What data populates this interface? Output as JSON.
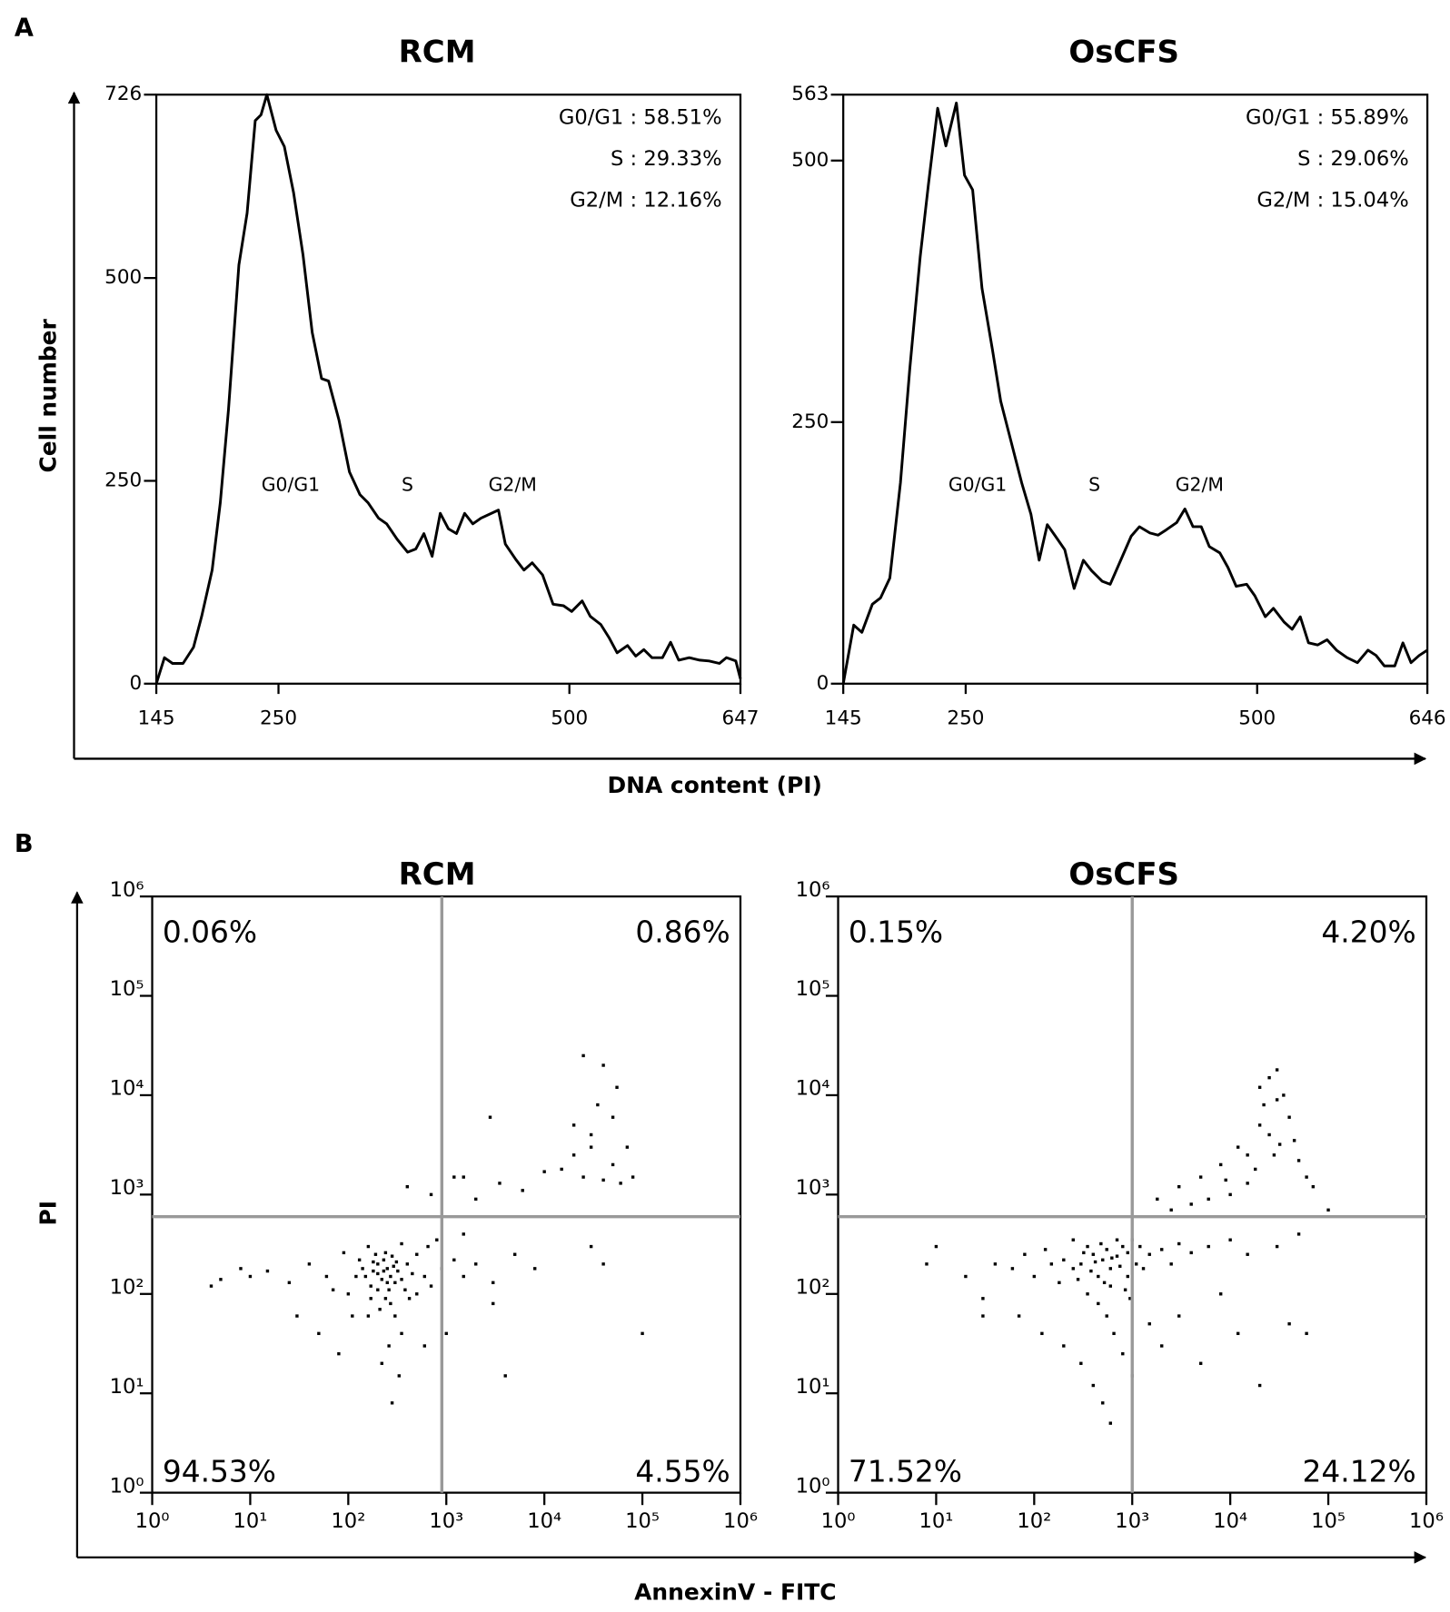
{
  "figure": {
    "panel_a_label": "A",
    "panel_a_ylabel": "Cell number",
    "panel_a_xlabel": "DNA content (PI)",
    "panel_b_label": "B",
    "panel_b_ylabel": "PI",
    "panel_b_xlabel": "AnnexinV - FITC"
  },
  "chart_data": [
    {
      "type": "line",
      "title": "RCM",
      "color": "#000000",
      "x": [
        145,
        152,
        159,
        168,
        177,
        184,
        193,
        200,
        207,
        216,
        223,
        230,
        235,
        240,
        248,
        255,
        263,
        271,
        279,
        287,
        293,
        302,
        311,
        320,
        327,
        336,
        343,
        352,
        361,
        368,
        375,
        382,
        389,
        396,
        403,
        410,
        417,
        424,
        439,
        445,
        454,
        461,
        468,
        477,
        486,
        495,
        502,
        511,
        518,
        527,
        534,
        541,
        550,
        557,
        564,
        571,
        580,
        587,
        594,
        603,
        612,
        620,
        629,
        635,
        643,
        647
      ],
      "values": [
        0,
        32,
        25,
        25,
        45,
        83,
        140,
        223,
        338,
        516,
        580,
        694,
        701,
        726,
        682,
        662,
        605,
        529,
        433,
        376,
        373,
        325,
        261,
        233,
        223,
        204,
        197,
        178,
        162,
        166,
        185,
        157,
        210,
        191,
        185,
        210,
        197,
        204,
        214,
        172,
        153,
        140,
        149,
        134,
        98,
        96,
        89,
        102,
        83,
        73,
        57,
        38,
        47,
        34,
        42,
        32,
        32,
        51,
        29,
        32,
        29,
        28,
        25,
        32,
        28,
        6
      ],
      "xlim": [
        145,
        647
      ],
      "xticks": [
        145,
        250,
        500,
        647
      ],
      "ylim": [
        0,
        726
      ],
      "yticks": [
        0,
        250,
        500,
        726
      ],
      "annotations": [
        "G0/G1 : 58.51%",
        "S : 29.33%",
        "G2/M : 12.16%"
      ],
      "phase_labels": [
        "G0/G1",
        "S",
        "G2/M"
      ]
    },
    {
      "type": "line",
      "title": "OsCFS",
      "color": "#000000",
      "x": [
        145,
        154,
        161,
        170,
        177,
        185,
        194,
        202,
        211,
        218,
        226,
        233,
        242,
        249,
        256,
        264,
        273,
        280,
        289,
        298,
        306,
        313,
        320,
        327,
        335,
        343,
        351,
        358,
        367,
        374,
        383,
        392,
        399,
        408,
        415,
        422,
        431,
        438,
        445,
        452,
        459,
        468,
        475,
        482,
        491,
        498,
        507,
        514,
        523,
        530,
        537,
        544,
        552,
        560,
        568,
        577,
        586,
        595,
        602,
        609,
        618,
        625,
        632,
        639,
        646
      ],
      "values": [
        0,
        56,
        49,
        76,
        82,
        101,
        192,
        300,
        408,
        477,
        550,
        514,
        555,
        486,
        472,
        378,
        319,
        270,
        231,
        192,
        162,
        118,
        152,
        141,
        128,
        91,
        118,
        108,
        98,
        95,
        118,
        141,
        150,
        144,
        142,
        147,
        154,
        167,
        150,
        150,
        131,
        125,
        111,
        93,
        95,
        84,
        64,
        72,
        59,
        52,
        64,
        39,
        37,
        42,
        32,
        25,
        20,
        32,
        27,
        17,
        17,
        39,
        20,
        27,
        32
      ],
      "xlim": [
        145,
        646
      ],
      "xticks": [
        145,
        250,
        500,
        646
      ],
      "ylim": [
        0,
        563
      ],
      "yticks": [
        0,
        250,
        500,
        563
      ],
      "annotations": [
        "G0/G1 : 55.89%",
        "S : 29.06%",
        "G2/M : 15.04%"
      ],
      "phase_labels": [
        "G0/G1",
        "S",
        "G2/M"
      ]
    },
    {
      "type": "scatter",
      "title": "RCM",
      "color": "#000000",
      "gate_color": "#999999",
      "log_x": true,
      "log_y": true,
      "x": [
        150,
        180,
        200,
        220,
        250,
        270,
        300,
        200,
        170,
        230,
        260,
        190,
        320,
        350,
        140,
        120,
        280,
        240,
        210,
        300,
        350,
        260,
        220,
        330,
        280,
        400,
        450,
        500,
        600,
        700,
        900,
        1200,
        1500,
        2000,
        3000,
        5000,
        8000,
        60,
        40,
        25,
        15,
        10,
        8,
        5,
        4,
        30,
        50,
        80,
        600,
        1000,
        3000,
        4000,
        700,
        1200,
        2000,
        3500,
        6000,
        10000,
        15000,
        20000,
        25000,
        30000,
        40000,
        50000,
        60000,
        25000,
        40000,
        55000,
        35000,
        20000,
        30000,
        50000,
        70000,
        80000,
        30000,
        40000,
        2800,
        1500,
        400,
        100,
        130,
        170,
        310,
        380,
        420,
        160,
        90,
        70,
        240,
        290,
        350,
        250,
        200,
        180,
        230,
        270,
        160,
        110,
        500,
        650,
        800,
        1500,
        100000
      ],
      "y": [
        150,
        170,
        160,
        140,
        180,
        150,
        130,
        200,
        120,
        220,
        110,
        250,
        170,
        140,
        180,
        150,
        240,
        90,
        70,
        60,
        40,
        30,
        20,
        15,
        8,
        200,
        160,
        250,
        150,
        120,
        180,
        220,
        150,
        200,
        130,
        250,
        180,
        150,
        200,
        130,
        170,
        150,
        180,
        140,
        120,
        60,
        40,
        25,
        30,
        40,
        80,
        15,
        1000,
        1500,
        900,
        1300,
        1100,
        1700,
        1800,
        2500,
        1500,
        3000,
        1400,
        2000,
        1300,
        25000,
        20000,
        12000,
        8000,
        5000,
        4000,
        6000,
        3000,
        1500,
        300,
        200,
        6000,
        1500,
        1200,
        100,
        220,
        90,
        210,
        110,
        90,
        300,
        260,
        110,
        260,
        190,
        320,
        130,
        110,
        210,
        170,
        80,
        60,
        60,
        100,
        300,
        350,
        400,
        40
      ],
      "xlim": [
        1,
        1000000
      ],
      "ylim": [
        1,
        1000000
      ],
      "xticks": [
        {
          "value": 1,
          "label": "10⁰"
        },
        {
          "value": 10,
          "label": "10¹"
        },
        {
          "value": 100,
          "label": "10²"
        },
        {
          "value": 1000,
          "label": "10³"
        },
        {
          "value": 10000,
          "label": "10⁴"
        },
        {
          "value": 100000,
          "label": "10⁵"
        },
        {
          "value": 1000000,
          "label": "10⁶"
        }
      ],
      "yticks": [
        {
          "value": 1,
          "label": "10⁰"
        },
        {
          "value": 10,
          "label": "10¹"
        },
        {
          "value": 100,
          "label": "10²"
        },
        {
          "value": 1000,
          "label": "10³"
        },
        {
          "value": 10000,
          "label": "10⁴"
        },
        {
          "value": 100000,
          "label": "10⁵"
        },
        {
          "value": 1000000,
          "label": "10⁶"
        }
      ],
      "gate_x": 900,
      "gate_y": 600,
      "quadrant_labels": [
        "0.06%",
        "0.86%",
        "94.53%",
        "4.55%"
      ]
    },
    {
      "type": "scatter",
      "title": "OsCFS",
      "color": "#000000",
      "gate_color": "#999999",
      "log_x": true,
      "log_y": true,
      "x": [
        300,
        400,
        500,
        600,
        450,
        350,
        550,
        700,
        250,
        200,
        150,
        800,
        900,
        1000,
        1200,
        1500,
        2000,
        2500,
        3000,
        4000,
        6000,
        10000,
        15000,
        30000,
        50000,
        100,
        80,
        60,
        40,
        20,
        10,
        8,
        30,
        70,
        120,
        200,
        300,
        400,
        500,
        600,
        350,
        450,
        550,
        650,
        800,
        1000,
        1500,
        2000,
        3000,
        5000,
        8000,
        12000,
        20000,
        40000,
        3000,
        5000,
        8000,
        10000,
        12000,
        15000,
        18000,
        20000,
        22000,
        25000,
        30000,
        35000,
        40000,
        45000,
        50000,
        60000,
        70000,
        25000,
        28000,
        32000,
        15000,
        9000,
        6000,
        4000,
        2500,
        1800,
        30000,
        20000,
        100000,
        600,
        700,
        900,
        1100,
        1300,
        250,
        180,
        130,
        480,
        380,
        520,
        420,
        320,
        280,
        620,
        750,
        850,
        950,
        30,
        60000
      ],
      "y": [
        200,
        250,
        220,
        180,
        150,
        300,
        280,
        240,
        180,
        220,
        200,
        300,
        260,
        350,
        300,
        250,
        280,
        200,
        320,
        260,
        300,
        350,
        250,
        300,
        400,
        150,
        250,
        180,
        200,
        150,
        300,
        200,
        90,
        60,
        40,
        30,
        20,
        12,
        8,
        5,
        100,
        80,
        60,
        40,
        25,
        15,
        50,
        30,
        60,
        20,
        100,
        40,
        12,
        50,
        1200,
        1500,
        2000,
        1000,
        3000,
        2500,
        1800,
        5000,
        8000,
        15000,
        18000,
        10000,
        6000,
        3500,
        2200,
        1500,
        1200,
        4000,
        2500,
        3200,
        1300,
        1400,
        900,
        800,
        700,
        900,
        9000,
        12000,
        700,
        120,
        350,
        150,
        200,
        180,
        350,
        130,
        280,
        320,
        170,
        130,
        210,
        260,
        140,
        230,
        190,
        110,
        90,
        60,
        40
      ],
      "xlim": [
        1,
        1000000
      ],
      "ylim": [
        1,
        1000000
      ],
      "xticks": [
        {
          "value": 1,
          "label": "10⁰"
        },
        {
          "value": 10,
          "label": "10¹"
        },
        {
          "value": 100,
          "label": "10²"
        },
        {
          "value": 1000,
          "label": "10³"
        },
        {
          "value": 10000,
          "label": "10⁴"
        },
        {
          "value": 100000,
          "label": "10⁵"
        },
        {
          "value": 1000000,
          "label": "10⁶"
        }
      ],
      "yticks": [
        {
          "value": 1,
          "label": "10⁰"
        },
        {
          "value": 10,
          "label": "10¹"
        },
        {
          "value": 100,
          "label": "10²"
        },
        {
          "value": 1000,
          "label": "10³"
        },
        {
          "value": 10000,
          "label": "10⁴"
        },
        {
          "value": 100000,
          "label": "10⁵"
        },
        {
          "value": 1000000,
          "label": "10⁶"
        }
      ],
      "gate_x": 1000,
      "gate_y": 600,
      "quadrant_labels": [
        "0.15%",
        "4.20%",
        "71.52%",
        "24.12%"
      ]
    }
  ]
}
